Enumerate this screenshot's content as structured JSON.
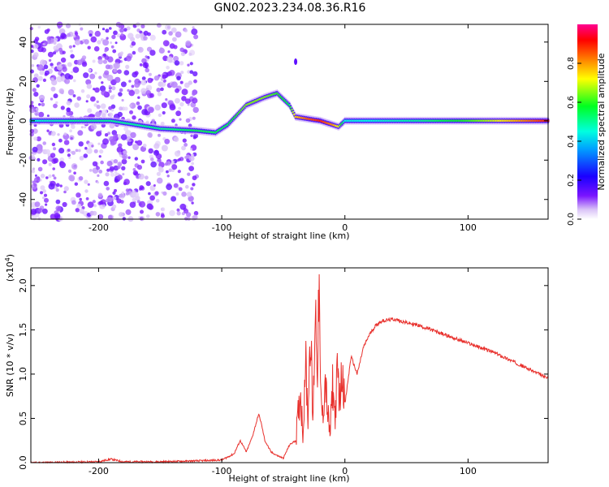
{
  "figure": {
    "title": "GN02.2023.234.08.36.R16"
  },
  "chart_data": [
    {
      "type": "heatmap",
      "xlabel": "Height of straight line (km)",
      "ylabel": "Frequency (Hz)",
      "xlim": [
        -255,
        165
      ],
      "ylim": [
        -50,
        49
      ],
      "xticks": [
        -200,
        -100,
        0,
        100
      ],
      "yticks": [
        -40,
        -20,
        0,
        20,
        40
      ],
      "colorbar": {
        "label": "Normalized spectral amplitude",
        "range": [
          0.0,
          1.0
        ],
        "ticks": [
          "0.0",
          "0.2",
          "0.4",
          "0.6",
          "0.8"
        ],
        "colormap": [
          "#ffffff",
          "#c9a8f2",
          "#6a00ff",
          "#0000ff",
          "#00ffff",
          "#00ff00",
          "#ffff00",
          "#ff8000",
          "#ff0000",
          "#ff00a0"
        ]
      },
      "ridge": {
        "description_points_x": [
          -255,
          -220,
          -190,
          -150,
          -120,
          -105,
          -95,
          -80,
          -65,
          -55,
          -45,
          -40,
          -30,
          -20,
          -10,
          -5,
          0,
          20,
          60,
          100,
          165
        ],
        "description_points_freq": [
          0,
          0,
          0,
          -4,
          -5,
          -6,
          -2,
          8,
          12,
          14,
          8,
          2,
          1,
          0,
          -2,
          -3,
          0,
          0,
          0,
          0,
          0
        ],
        "description_points_amplitude": [
          0.45,
          0.5,
          0.5,
          0.5,
          0.55,
          0.55,
          0.55,
          0.65,
          0.65,
          0.6,
          0.55,
          0.75,
          0.85,
          0.9,
          0.8,
          0.7,
          0.45,
          0.45,
          0.5,
          0.6,
          0.9
        ]
      },
      "side_blob": {
        "x": -40,
        "freq": 30
      }
    },
    {
      "type": "line",
      "xlabel": "Height of straight line (km)",
      "ylabel": "SNR (10 * v/v)",
      "multiplier_label": "(x10",
      "multiplier_exponent": "4",
      "multiplier_close": ")",
      "xlim": [
        -255,
        165
      ],
      "ylim": [
        0.0,
        2.2
      ],
      "xticks": [
        -200,
        -100,
        0,
        100
      ],
      "yticks": [
        "0.0",
        "0.5",
        "1.0",
        "1.5",
        "2.0"
      ],
      "ytick_values": [
        0.0,
        0.5,
        1.0,
        1.5,
        2.0
      ],
      "series": [
        {
          "color": "#e8302c",
          "x": [
            -255,
            -200,
            -190,
            -180,
            -150,
            -120,
            -100,
            -90,
            -85,
            -80,
            -75,
            -70,
            -68,
            -65,
            -60,
            -55,
            -50,
            -45,
            -40,
            -36,
            -34,
            -32,
            -30,
            -28,
            -26,
            -24,
            -22,
            -21,
            -20,
            -18,
            -16,
            -14,
            -12,
            -10,
            -8,
            -6,
            -4,
            -2,
            0,
            5,
            10,
            15,
            20,
            25,
            30,
            40,
            50,
            60,
            80,
            100,
            120,
            140,
            165
          ],
          "y": [
            0.0,
            0.01,
            0.04,
            0.01,
            0.01,
            0.02,
            0.03,
            0.1,
            0.25,
            0.12,
            0.3,
            0.55,
            0.45,
            0.25,
            0.12,
            0.08,
            0.05,
            0.2,
            0.25,
            0.8,
            0.3,
            1.2,
            0.5,
            1.6,
            0.4,
            1.8,
            1.0,
            2.2,
            0.8,
            0.5,
            0.95,
            0.55,
            0.3,
            0.9,
            0.5,
            1.05,
            0.7,
            1.1,
            0.65,
            1.2,
            1.0,
            1.3,
            1.45,
            1.55,
            1.6,
            1.62,
            1.58,
            1.55,
            1.45,
            1.35,
            1.25,
            1.12,
            0.95
          ]
        }
      ]
    }
  ]
}
